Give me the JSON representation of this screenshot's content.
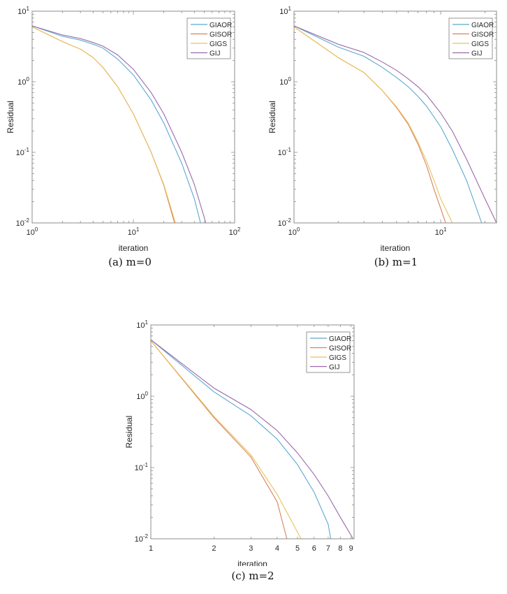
{
  "colors": {
    "GIAOR": "#5aa9cf",
    "GISOR": "#d9825a",
    "GIGS": "#e8c25a",
    "GIJ": "#9a6aa8",
    "axis": "#8c8c8c"
  },
  "chart_data": [
    {
      "id": "a",
      "type": "line",
      "caption": "(a)  m=0",
      "xlabel": "iteration",
      "ylabel": "Residual",
      "xscale": "log",
      "yscale": "log",
      "xlim": [
        1,
        100
      ],
      "ylim": [
        0.01,
        10
      ],
      "xticks": [
        {
          "v": 1,
          "label": "10",
          "exp": "0"
        },
        {
          "v": 10,
          "label": "10",
          "exp": "1"
        },
        {
          "v": 100,
          "label": "10",
          "exp": "2"
        }
      ],
      "yticks": [
        {
          "v": 10,
          "label": "10",
          "exp": "1"
        },
        {
          "v": 1,
          "label": "10",
          "exp": "0"
        },
        {
          "v": 0.1,
          "label": "10",
          "exp": "-1"
        },
        {
          "v": 0.01,
          "label": "10",
          "exp": "-2"
        }
      ],
      "legend": [
        "GIAOR",
        "GISOR",
        "GIGS",
        "GIJ"
      ],
      "series": [
        {
          "name": "GIAOR",
          "x": [
            1,
            2,
            3,
            4,
            5,
            7,
            10,
            15,
            20,
            30,
            40,
            46
          ],
          "y": [
            6.2,
            4.4,
            3.9,
            3.4,
            3.0,
            2.1,
            1.25,
            0.55,
            0.26,
            0.07,
            0.022,
            0.01
          ]
        },
        {
          "name": "GISOR",
          "x": [
            1,
            2,
            3,
            4,
            5,
            7,
            10,
            15,
            20,
            25.5
          ],
          "y": [
            6.0,
            3.7,
            2.9,
            2.2,
            1.6,
            0.85,
            0.35,
            0.1,
            0.034,
            0.01
          ]
        },
        {
          "name": "GIGS",
          "x": [
            1,
            2,
            3,
            4,
            5,
            7,
            10,
            15,
            20,
            26
          ],
          "y": [
            6.0,
            3.7,
            2.9,
            2.2,
            1.6,
            0.85,
            0.35,
            0.1,
            0.035,
            0.01
          ]
        },
        {
          "name": "GIJ",
          "x": [
            1,
            2,
            3,
            4,
            5,
            7,
            10,
            15,
            20,
            30,
            40,
            52
          ],
          "y": [
            6.2,
            4.6,
            4.1,
            3.6,
            3.2,
            2.4,
            1.5,
            0.7,
            0.35,
            0.1,
            0.035,
            0.01
          ]
        }
      ]
    },
    {
      "id": "b",
      "type": "line",
      "caption": "(b)  m=1",
      "xlabel": "iteration",
      "ylabel": "Residual",
      "xscale": "log",
      "yscale": "log",
      "xlim": [
        1,
        24
      ],
      "ylim": [
        0.01,
        10
      ],
      "xticks": [
        {
          "v": 1,
          "label": "10",
          "exp": "0"
        },
        {
          "v": 10,
          "label": "10",
          "exp": "1"
        }
      ],
      "yticks": [
        {
          "v": 10,
          "label": "10",
          "exp": "1"
        },
        {
          "v": 1,
          "label": "10",
          "exp": "0"
        },
        {
          "v": 0.1,
          "label": "10",
          "exp": "-1"
        },
        {
          "v": 0.01,
          "label": "10",
          "exp": "-2"
        }
      ],
      "legend": [
        "GIAOR",
        "GISOR",
        "GIGS",
        "GIJ"
      ],
      "series": [
        {
          "name": "GIAOR",
          "x": [
            1,
            2,
            3,
            4,
            5,
            6,
            7,
            8,
            10,
            12,
            15,
            19
          ],
          "y": [
            6.2,
            3.1,
            2.3,
            1.6,
            1.15,
            0.85,
            0.62,
            0.45,
            0.23,
            0.11,
            0.04,
            0.01
          ]
        },
        {
          "name": "GISOR",
          "x": [
            1,
            2,
            3,
            4,
            5,
            6,
            7,
            8,
            9,
            10,
            10.8
          ],
          "y": [
            6.0,
            2.2,
            1.35,
            0.75,
            0.43,
            0.25,
            0.13,
            0.065,
            0.03,
            0.016,
            0.01
          ]
        },
        {
          "name": "GIGS",
          "x": [
            1,
            2,
            3,
            4,
            5,
            6,
            7,
            8,
            9,
            10,
            12
          ],
          "y": [
            6.0,
            2.2,
            1.35,
            0.75,
            0.44,
            0.26,
            0.14,
            0.075,
            0.04,
            0.022,
            0.01
          ]
        },
        {
          "name": "GIJ",
          "x": [
            1,
            2,
            3,
            4,
            5,
            6,
            7,
            8,
            10,
            12,
            15,
            20,
            24
          ],
          "y": [
            6.2,
            3.4,
            2.6,
            1.9,
            1.45,
            1.1,
            0.85,
            0.65,
            0.36,
            0.2,
            0.08,
            0.022,
            0.01
          ]
        }
      ]
    },
    {
      "id": "c",
      "type": "line",
      "caption": "(c)  m=2",
      "xlabel": "iteration",
      "ylabel": "Residual",
      "xscale": "log",
      "yscale": "log",
      "xlim": [
        1,
        9.3
      ],
      "ylim": [
        0.01,
        10
      ],
      "xticks": [
        {
          "v": 1,
          "label": "1"
        },
        {
          "v": 2,
          "label": "2"
        },
        {
          "v": 3,
          "label": "3"
        },
        {
          "v": 4,
          "label": "4"
        },
        {
          "v": 5,
          "label": "5"
        },
        {
          "v": 6,
          "label": "6"
        },
        {
          "v": 7,
          "label": "7"
        },
        {
          "v": 8,
          "label": "8"
        },
        {
          "v": 9,
          "label": "9"
        }
      ],
      "yticks": [
        {
          "v": 10,
          "label": "10",
          "exp": "1"
        },
        {
          "v": 1,
          "label": "10",
          "exp": "0"
        },
        {
          "v": 0.1,
          "label": "10",
          "exp": "-1"
        },
        {
          "v": 0.01,
          "label": "10",
          "exp": "-2"
        }
      ],
      "legend": [
        "GIAOR",
        "GISOR",
        "GIGS",
        "GIJ"
      ],
      "series": [
        {
          "name": "GIAOR",
          "x": [
            1,
            2,
            3,
            4,
            5,
            6,
            7,
            7.2
          ],
          "y": [
            6.2,
            1.15,
            0.53,
            0.25,
            0.11,
            0.045,
            0.016,
            0.01
          ]
        },
        {
          "name": "GISOR",
          "x": [
            1,
            2,
            3,
            4,
            4.45
          ],
          "y": [
            6.0,
            0.5,
            0.14,
            0.033,
            0.01
          ]
        },
        {
          "name": "GIGS",
          "x": [
            1,
            2,
            3,
            4,
            5.2
          ],
          "y": [
            6.0,
            0.52,
            0.15,
            0.042,
            0.01
          ]
        },
        {
          "name": "GIJ",
          "x": [
            1,
            2,
            3,
            4,
            5,
            6,
            7,
            8,
            9.2
          ],
          "y": [
            6.2,
            1.3,
            0.65,
            0.33,
            0.16,
            0.08,
            0.04,
            0.02,
            0.01
          ]
        }
      ]
    }
  ]
}
